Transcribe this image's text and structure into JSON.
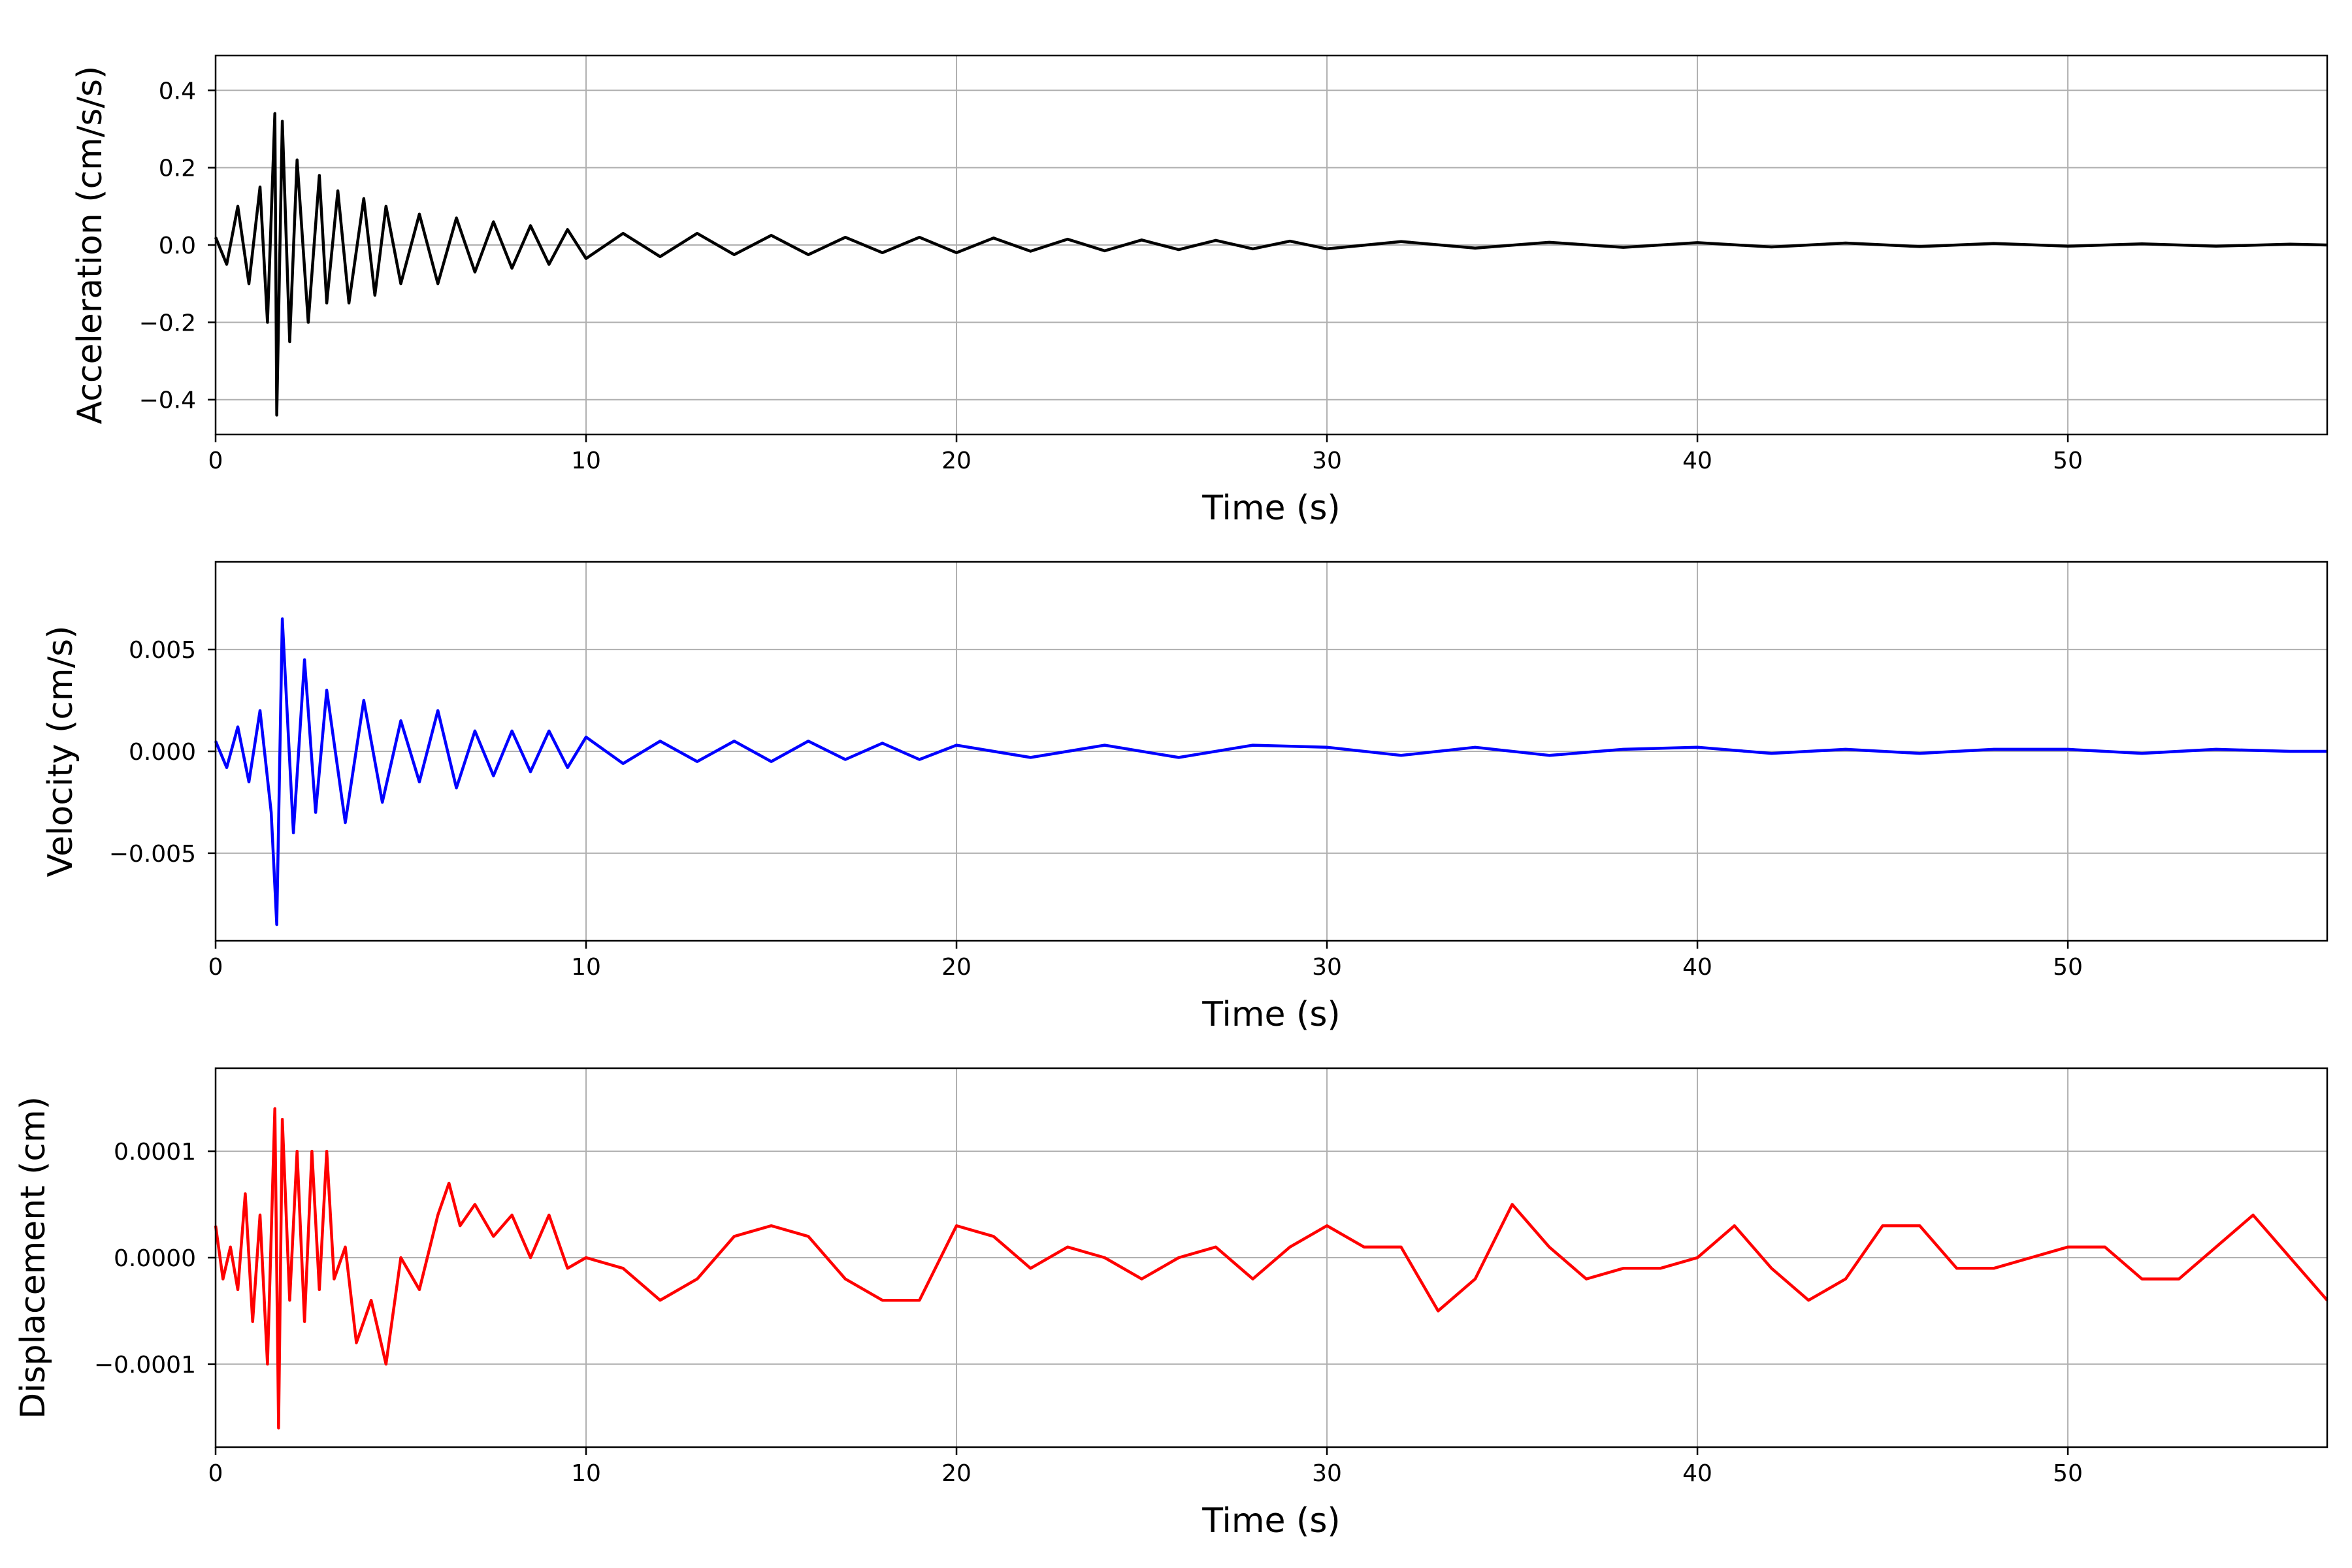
{
  "chart_data": [
    {
      "type": "line",
      "color": "#000000",
      "ylabel": "Acceleration (cm/s/s)",
      "xlabel": "Time (s)",
      "xlim": [
        0,
        57
      ],
      "ylim": [
        -0.49,
        0.49
      ],
      "xticks": [
        "0",
        "10",
        "20",
        "30",
        "40",
        "50"
      ],
      "yticks": [
        "−0.4",
        "−0.2",
        "0.0",
        "0.2",
        "0.4"
      ],
      "grid": true,
      "x": [
        0,
        0.3,
        0.6,
        0.9,
        1.2,
        1.4,
        1.6,
        1.65,
        1.8,
        2.0,
        2.2,
        2.5,
        2.8,
        3.0,
        3.3,
        3.6,
        4.0,
        4.3,
        4.6,
        5.0,
        5.5,
        6.0,
        6.5,
        7.0,
        7.5,
        8.0,
        8.5,
        9.0,
        9.5,
        10,
        11,
        12,
        13,
        14,
        15,
        16,
        17,
        18,
        19,
        20,
        21,
        22,
        23,
        24,
        25,
        26,
        27,
        28,
        29,
        30,
        32,
        34,
        36,
        38,
        40,
        42,
        44,
        46,
        48,
        50,
        52,
        54,
        56,
        57
      ],
      "values": [
        0.02,
        -0.05,
        0.1,
        -0.1,
        0.15,
        -0.2,
        0.34,
        -0.44,
        0.32,
        -0.25,
        0.22,
        -0.2,
        0.18,
        -0.15,
        0.14,
        -0.15,
        0.12,
        -0.13,
        0.1,
        -0.1,
        0.08,
        -0.1,
        0.07,
        -0.07,
        0.06,
        -0.06,
        0.05,
        -0.05,
        0.04,
        -0.035,
        0.03,
        -0.03,
        0.03,
        -0.025,
        0.025,
        -0.025,
        0.02,
        -0.02,
        0.02,
        -0.02,
        0.018,
        -0.016,
        0.015,
        -0.015,
        0.013,
        -0.012,
        0.012,
        -0.01,
        0.01,
        -0.01,
        0.009,
        -0.008,
        0.007,
        -0.006,
        0.006,
        -0.005,
        0.005,
        -0.004,
        0.004,
        -0.003,
        0.003,
        -0.003,
        0.002,
        0.0
      ]
    },
    {
      "type": "line",
      "color": "#0000ff",
      "ylabel": "Velocity (cm/s)",
      "xlabel": "Time (s)",
      "xlim": [
        0,
        57
      ],
      "ylim": [
        -0.0093,
        0.0093
      ],
      "xticks": [
        "0",
        "10",
        "20",
        "30",
        "40",
        "50"
      ],
      "yticks": [
        "−0.005",
        "0.000",
        "0.005"
      ],
      "grid": true,
      "x": [
        0,
        0.3,
        0.6,
        0.9,
        1.2,
        1.5,
        1.65,
        1.8,
        2.1,
        2.4,
        2.7,
        3.0,
        3.5,
        4.0,
        4.5,
        5.0,
        5.5,
        6.0,
        6.5,
        7.0,
        7.5,
        8.0,
        8.5,
        9.0,
        9.5,
        10,
        11,
        12,
        13,
        14,
        15,
        16,
        17,
        18,
        19,
        20,
        22,
        24,
        26,
        28,
        30,
        32,
        34,
        36,
        38,
        40,
        42,
        44,
        46,
        48,
        50,
        52,
        54,
        56,
        57
      ],
      "values": [
        0.0005,
        -0.0008,
        0.0012,
        -0.0015,
        0.002,
        -0.003,
        -0.0085,
        0.0065,
        -0.004,
        0.0045,
        -0.003,
        0.003,
        -0.0035,
        0.0025,
        -0.0025,
        0.0015,
        -0.0015,
        0.002,
        -0.0018,
        0.001,
        -0.0012,
        0.001,
        -0.001,
        0.001,
        -0.0008,
        0.0007,
        -0.0006,
        0.0005,
        -0.0005,
        0.0005,
        -0.0005,
        0.0005,
        -0.0004,
        0.0004,
        -0.0004,
        0.0003,
        -0.0003,
        0.0003,
        -0.0003,
        0.0003,
        0.0002,
        -0.0002,
        0.0002,
        -0.0002,
        0.0001,
        0.0002,
        -0.0001,
        0.0001,
        -0.0001,
        0.0001,
        0.0001,
        -0.0001,
        0.0001,
        0.0,
        0.0
      ]
    },
    {
      "type": "line",
      "color": "#ff0000",
      "ylabel": "Displacement (cm)",
      "xlabel": "Time (s)",
      "xlim": [
        0,
        57
      ],
      "ylim": [
        -0.000178,
        0.000178
      ],
      "xticks": [
        "0",
        "10",
        "20",
        "30",
        "40",
        "50"
      ],
      "yticks": [
        "−0.0001",
        "0.0000",
        "0.0001"
      ],
      "grid": true,
      "x": [
        0,
        0.2,
        0.4,
        0.6,
        0.8,
        1.0,
        1.2,
        1.4,
        1.6,
        1.7,
        1.8,
        2.0,
        2.2,
        2.4,
        2.6,
        2.8,
        3.0,
        3.2,
        3.5,
        3.8,
        4.2,
        4.6,
        5.0,
        5.5,
        6.0,
        6.3,
        6.6,
        7.0,
        7.5,
        8.0,
        8.5,
        9.0,
        9.5,
        10.0,
        11.0,
        12.0,
        13.0,
        14.0,
        15.0,
        16.0,
        17.0,
        18.0,
        19.0,
        20.0,
        21.0,
        22.0,
        23.0,
        24.0,
        25.0,
        26.0,
        27.0,
        28.0,
        29.0,
        30.0,
        31.0,
        32.0,
        33.0,
        34.0,
        35.0,
        36.0,
        37.0,
        38.0,
        39.0,
        40.0,
        41.0,
        42.0,
        43.0,
        44.0,
        45.0,
        46.0,
        47.0,
        48.0,
        49.0,
        50.0,
        51.0,
        52.0,
        53.0,
        54.0,
        55.0,
        56.0,
        57.0
      ],
      "values": [
        3e-05,
        -2e-05,
        1e-05,
        -3e-05,
        6e-05,
        -6e-05,
        4e-05,
        -0.0001,
        0.00014,
        -0.00016,
        0.00013,
        -4e-05,
        0.0001,
        -6e-05,
        0.0001,
        -3e-05,
        0.0001,
        -2e-05,
        1e-05,
        -8e-05,
        -4e-05,
        -0.0001,
        0.0,
        -3e-05,
        4e-05,
        7e-05,
        3e-05,
        5e-05,
        2e-05,
        4e-05,
        0.0,
        4e-05,
        -1e-05,
        0.0,
        -1e-05,
        -4e-05,
        -2e-05,
        2e-05,
        3e-05,
        2e-05,
        -2e-05,
        -4e-05,
        -4e-05,
        3e-05,
        2e-05,
        -1e-05,
        1e-05,
        0.0,
        -2e-05,
        0.0,
        1e-05,
        -2e-05,
        1e-05,
        3e-05,
        1e-05,
        1e-05,
        -5e-05,
        -2e-05,
        5e-05,
        1e-05,
        -2e-05,
        -1e-05,
        -1e-05,
        0.0,
        3e-05,
        -1e-05,
        -4e-05,
        -2e-05,
        3e-05,
        3e-05,
        -1e-05,
        -1e-05,
        0.0,
        1e-05,
        1e-05,
        -2e-05,
        -2e-05,
        1e-05,
        4e-05,
        0.0,
        -4e-05
      ]
    }
  ]
}
